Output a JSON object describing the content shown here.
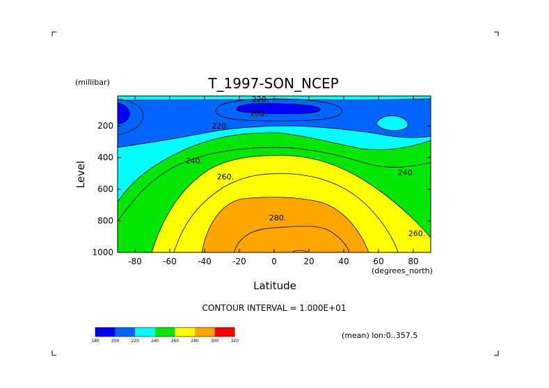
{
  "chart_data": {
    "type": "contour",
    "title": "T_1997-SON_NCEP",
    "xlabel": "Latitude",
    "x_unit_label": "(degrees_north)",
    "ylabel": "Level",
    "y_unit_label": "(millibar)",
    "xlim": [
      -90,
      90
    ],
    "ylim": [
      1000,
      10
    ],
    "y_inverted": true,
    "x_ticks": [
      -80,
      -60,
      -40,
      -20,
      0,
      20,
      40,
      60,
      80
    ],
    "y_ticks": [
      200,
      400,
      600,
      800,
      1000
    ],
    "contour_interval_text": "CONTOUR INTERVAL = 1.000E+01",
    "subset_text": "(mean) lon:0..357.5",
    "contour_labels": [
      {
        "text": "220.",
        "lat": -8,
        "level": 30
      },
      {
        "text": "200.",
        "lat": -9,
        "level": 120
      },
      {
        "text": "220.",
        "lat": -31,
        "level": 200
      },
      {
        "text": "240.",
        "lat": -46,
        "level": 420
      },
      {
        "text": "260.",
        "lat": -28,
        "level": 520
      },
      {
        "text": "280.",
        "lat": 2,
        "level": 780
      },
      {
        "text": "240.",
        "lat": 76,
        "level": 495
      },
      {
        "text": "260.",
        "lat": 82,
        "level": 880
      }
    ],
    "colorbar": {
      "ticks": [
        "180",
        "200",
        "220",
        "240",
        "260",
        "280",
        "300",
        "320"
      ],
      "colors": [
        "#0000ff",
        "#0064ff",
        "#00ffff",
        "#00e600",
        "#ffff00",
        "#ffa500",
        "#ff0000"
      ]
    }
  }
}
